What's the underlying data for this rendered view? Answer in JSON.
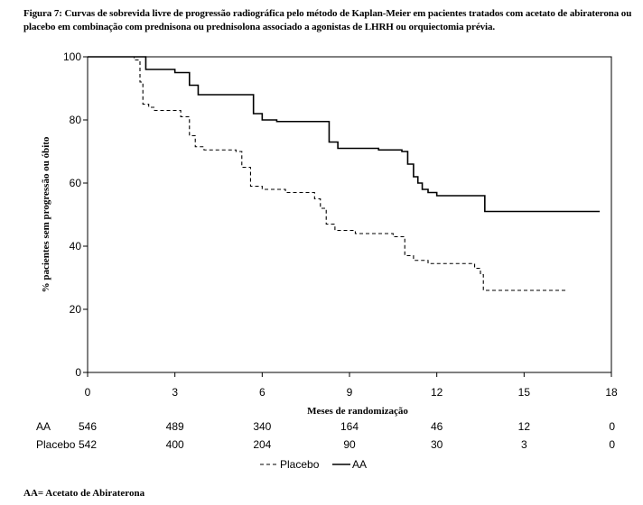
{
  "caption": "Figura 7: Curvas de sobrevida livre de progressão radiográfica pelo método de Kaplan-Meier em pacientes tratados com acetato de abiraterona ou placebo em combinação com prednisona ou prednisolona associado a agonistas de LHRH ou orquiectomia prévia.",
  "footnote": "AA= Acetato de Abiraterona",
  "chart_data": {
    "type": "line",
    "xlabel": "Meses de randomização",
    "ylabel": "% pacientes sem progressão ou óbito",
    "xlim": [
      0,
      18
    ],
    "ylim": [
      0,
      100
    ],
    "x_ticks": [
      0,
      3,
      6,
      9,
      12,
      15,
      18
    ],
    "y_ticks": [
      0,
      20,
      40,
      60,
      80,
      100
    ],
    "grid": false,
    "legend_position": "bottom-center",
    "series": [
      {
        "name": "AA",
        "style": "solid",
        "color": "#000000",
        "x": [
          0,
          1.7,
          2.0,
          3.0,
          3.5,
          3.8,
          5.3,
          5.7,
          6.0,
          6.5,
          8.0,
          8.3,
          8.6,
          9.5,
          10.0,
          10.8,
          11.0,
          11.2,
          11.35,
          11.5,
          11.7,
          12.0,
          13.5,
          13.65,
          17.6
        ],
        "y": [
          100,
          100,
          96,
          95,
          91,
          88,
          88,
          82,
          80,
          79.5,
          79.5,
          73,
          71,
          71,
          70.5,
          70,
          66,
          62,
          60,
          58,
          57,
          56,
          56,
          51,
          51
        ]
      },
      {
        "name": "Placebo",
        "style": "dashed",
        "color": "#000000",
        "x": [
          0,
          1.6,
          1.8,
          1.9,
          2.1,
          2.3,
          3.2,
          3.5,
          3.7,
          4.0,
          5.1,
          5.3,
          5.6,
          6.0,
          6.8,
          7.8,
          8.0,
          8.2,
          8.5,
          9.2,
          10.5,
          10.9,
          11.2,
          11.7,
          13.3,
          13.5,
          13.6,
          16.5
        ],
        "y": [
          100,
          99,
          92,
          85,
          84,
          83,
          81,
          75,
          71.5,
          70.5,
          70,
          65,
          59,
          58,
          57,
          55,
          52,
          47,
          45,
          44,
          43,
          37,
          35.5,
          34.5,
          33,
          31,
          26,
          26
        ]
      }
    ]
  },
  "risk_table": {
    "times": [
      0,
      3,
      6,
      9,
      12,
      15,
      18
    ],
    "rows": [
      {
        "label": "AA",
        "values": [
          "546",
          "489",
          "340",
          "164",
          "46",
          "12",
          "0"
        ]
      },
      {
        "label": "Placebo",
        "values": [
          "542",
          "400",
          "204",
          "90",
          "30",
          "3",
          "0"
        ]
      }
    ]
  },
  "legend": [
    {
      "label": "Placebo",
      "style": "dashed"
    },
    {
      "label": "AA",
      "style": "solid"
    }
  ]
}
